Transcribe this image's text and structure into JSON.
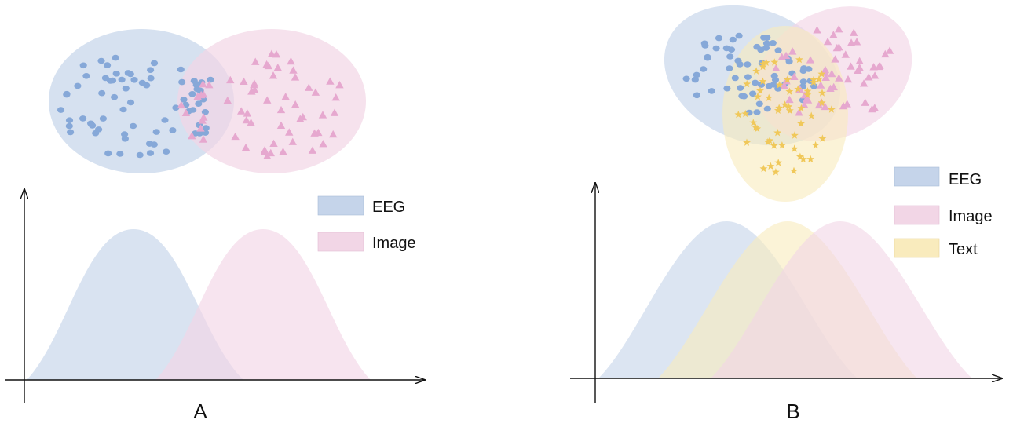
{
  "colors": {
    "eeg_fill": "#c5d4ea",
    "eeg_point": "#86a8d8",
    "image_fill": "#f2d6e6",
    "image_point": "#e6a8cf",
    "text_fill": "#f9ebbd",
    "text_point": "#f0c85a",
    "axis": "#111111"
  },
  "panels": [
    {
      "label": "A",
      "legend": [
        {
          "label": "EEG",
          "color_key": "eeg"
        },
        {
          "label": "Image",
          "color_key": "image"
        }
      ],
      "modalities": [
        "eeg",
        "image"
      ]
    },
    {
      "label": "B",
      "legend": [
        {
          "label": "EEG",
          "color_key": "eeg"
        },
        {
          "label": "Image",
          "color_key": "image"
        },
        {
          "label": "Text",
          "color_key": "text"
        }
      ],
      "modalities": [
        "eeg",
        "image",
        "text"
      ]
    }
  ]
}
